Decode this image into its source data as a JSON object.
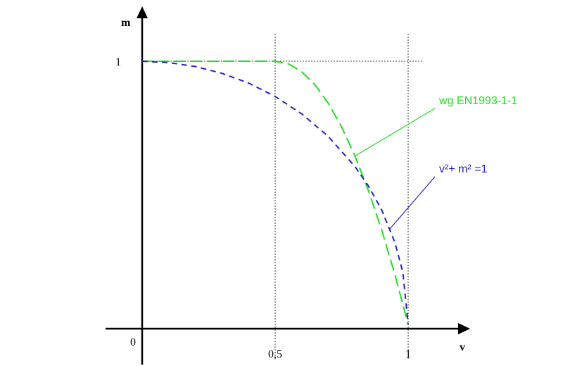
{
  "chart_data": {
    "type": "line",
    "xlabel": "v",
    "ylabel": "m",
    "origin_label": "0",
    "xlim": [
      0,
      1.25
    ],
    "ylim": [
      0,
      1.05
    ],
    "x_ticks": [
      {
        "value": 0.5,
        "label": "0,5"
      },
      {
        "value": 1,
        "label": "1"
      }
    ],
    "y_ticks": [
      {
        "value": 1,
        "label": "1"
      }
    ],
    "grid": false,
    "reference_lines": [
      {
        "axis": "x",
        "value": 0.5
      },
      {
        "axis": "x",
        "value": 1
      },
      {
        "axis": "y",
        "value": 1
      }
    ],
    "series": [
      {
        "name": "wg EN1993-1-1",
        "color": "#22dd22",
        "style": "long-dash",
        "x": [
          0,
          0.5,
          0.55,
          0.6,
          0.65,
          0.7,
          0.75,
          0.8,
          0.85,
          0.9,
          0.95,
          1.0
        ],
        "y": [
          1,
          1,
          0.99,
          0.96,
          0.91,
          0.84,
          0.75,
          0.64,
          0.51,
          0.36,
          0.19,
          0
        ]
      },
      {
        "name": "v²+ m² =1",
        "color": "#2222cc",
        "style": "short-dash",
        "x": [
          0,
          0.1,
          0.2,
          0.3,
          0.4,
          0.5,
          0.6,
          0.7,
          0.8,
          0.85,
          0.9,
          0.95,
          0.98,
          1.0
        ],
        "y": [
          1,
          0.995,
          0.98,
          0.954,
          0.917,
          0.866,
          0.8,
          0.714,
          0.6,
          0.527,
          0.436,
          0.312,
          0.199,
          0
        ]
      }
    ],
    "annotations": [
      {
        "series": 0,
        "text": "wg EN1993-1-1",
        "at_x": 0.8,
        "label_side": "right"
      },
      {
        "series": 1,
        "text": "v²+ m² =1",
        "at_x": 0.93,
        "label_side": "right"
      }
    ]
  }
}
